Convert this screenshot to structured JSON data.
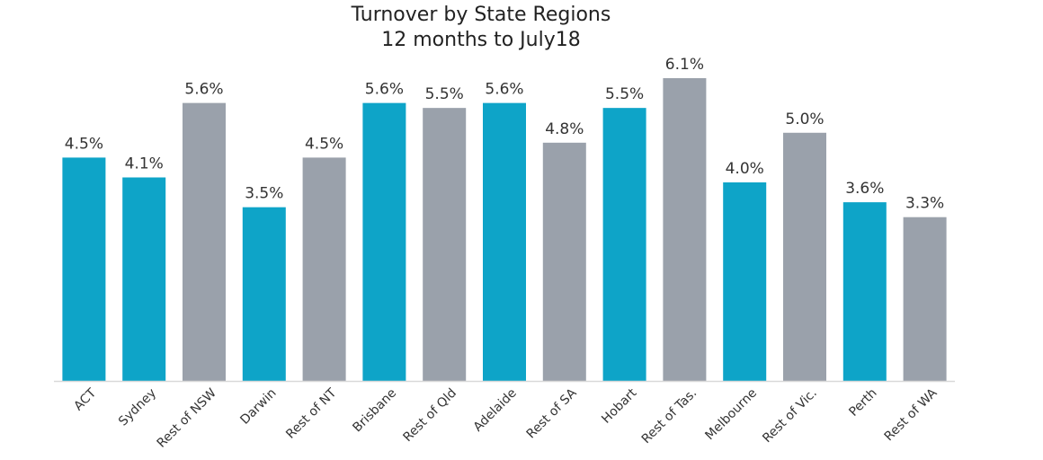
{
  "chart_data": {
    "type": "bar",
    "title": "Turnover by State Regions",
    "subtitle": "12 months to July18",
    "categories": [
      "ACT",
      "Sydney",
      "Rest of NSW",
      "Darwin",
      "Rest of NT",
      "Brisbane",
      "Rest of Qld",
      "Adelaide",
      "Rest of SA",
      "Hobart",
      "Rest of Tas.",
      "Melbourne",
      "Rest of Vic.",
      "Perth",
      "Rest of WA"
    ],
    "values": [
      4.5,
      4.1,
      5.6,
      3.5,
      4.5,
      5.6,
      5.5,
      5.6,
      4.8,
      5.5,
      6.1,
      4.0,
      5.0,
      3.6,
      3.3
    ],
    "data_labels": [
      "4.5%",
      "4.1%",
      "5.6%",
      "3.5%",
      "4.5%",
      "5.6%",
      "5.5%",
      "5.6%",
      "4.8%",
      "5.5%",
      "6.1%",
      "4.0%",
      "5.0%",
      "3.6%",
      "3.3%"
    ],
    "bar_kinds": [
      "capital",
      "capital",
      "rest",
      "capital",
      "rest",
      "capital",
      "rest",
      "capital",
      "rest",
      "capital",
      "rest",
      "capital",
      "rest",
      "capital",
      "rest"
    ],
    "ylim": [
      0,
      6.1
    ],
    "grid": false,
    "colors": {
      "capital": "#0ea4c8",
      "rest": "#9aa1ab",
      "axis": "#d9d9d9",
      "text": "#333333"
    }
  }
}
